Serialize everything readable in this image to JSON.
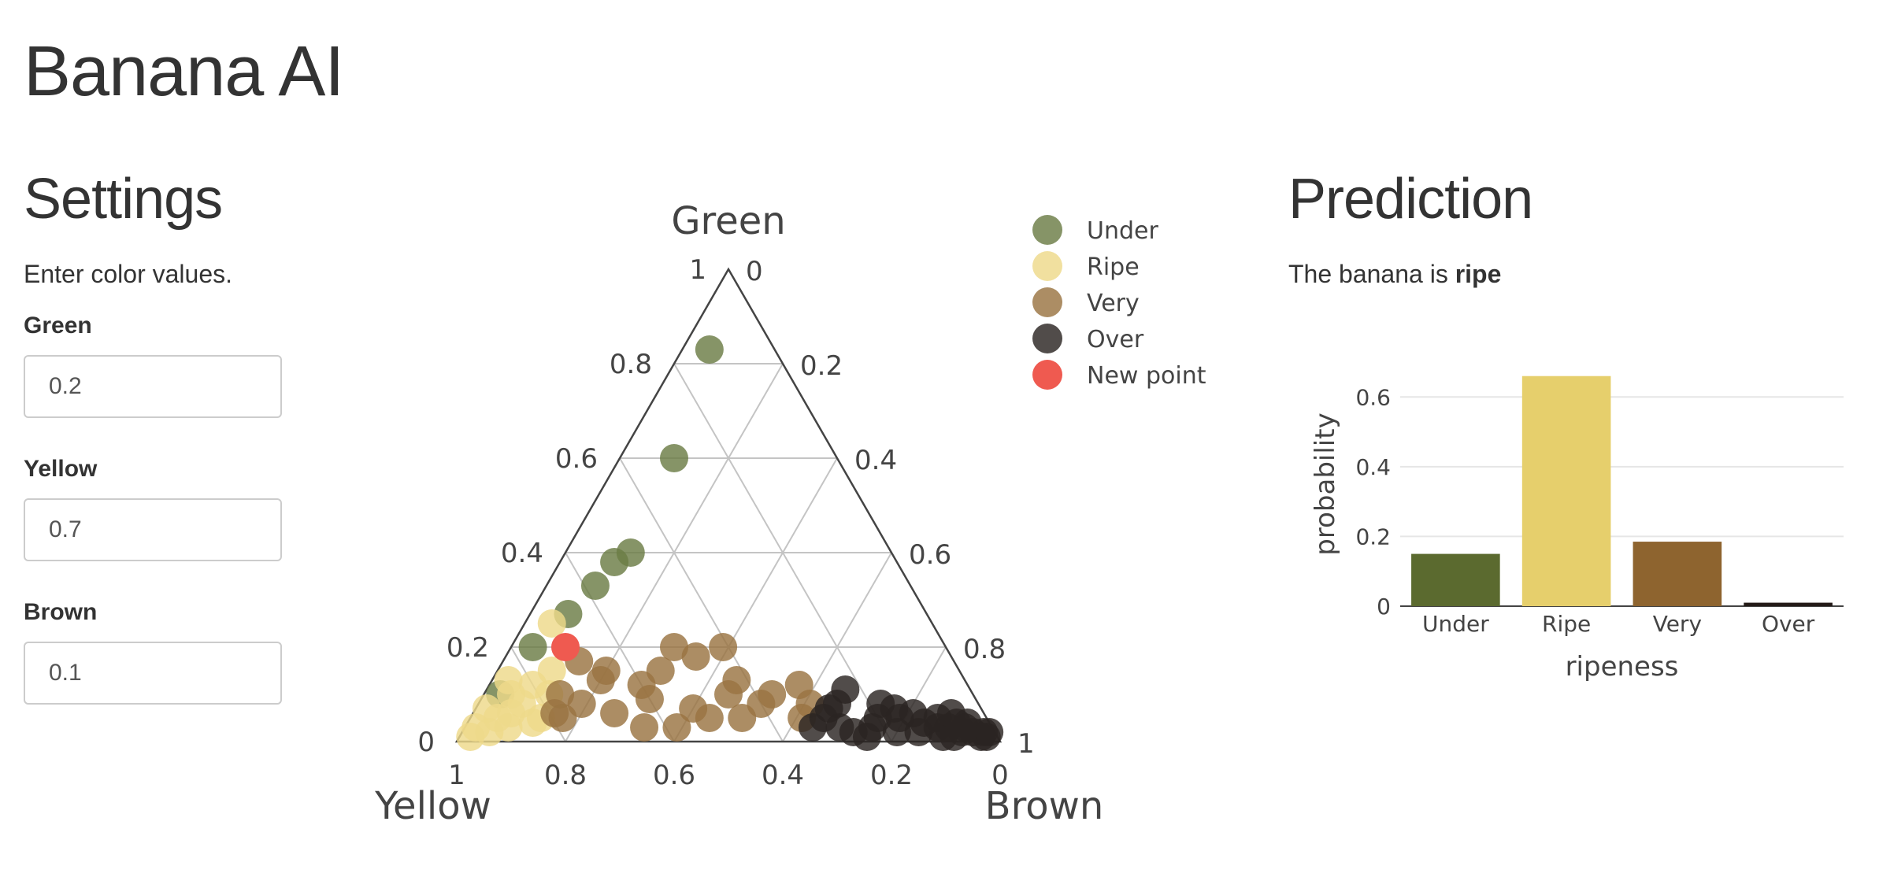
{
  "app": {
    "title": "Banana AI"
  },
  "settings": {
    "title": "Settings",
    "help": "Enter color values.",
    "fields": [
      {
        "label": "Green",
        "value": "0.2"
      },
      {
        "label": "Yellow",
        "value": "0.7"
      },
      {
        "label": "Brown",
        "value": "0.1"
      }
    ]
  },
  "prediction": {
    "title": "Prediction",
    "text_prefix": "The banana is ",
    "text_value": "ripe"
  },
  "chart_data": [
    {
      "type": "scatter",
      "subtype": "ternary",
      "axes": {
        "a": "Green",
        "b": "Yellow",
        "c": "Brown"
      },
      "tick_labels": [
        "0",
        "0.2",
        "0.4",
        "0.6",
        "0.8",
        "1"
      ],
      "grid": true,
      "legend_position": "top-right",
      "series": [
        {
          "name": "Under",
          "color": "#6b7d45",
          "points": [
            [
              0.83,
              0.12,
              0.05
            ],
            [
              0.6,
              0.3,
              0.1
            ],
            [
              0.4,
              0.48,
              0.12
            ],
            [
              0.38,
              0.52,
              0.1
            ],
            [
              0.33,
              0.58,
              0.09
            ],
            [
              0.27,
              0.66,
              0.07
            ],
            [
              0.2,
              0.76,
              0.04
            ],
            [
              0.1,
              0.87,
              0.03
            ]
          ]
        },
        {
          "name": "Ripe",
          "color": "#eed98a",
          "points": [
            [
              0.25,
              0.7,
              0.05
            ],
            [
              0.12,
              0.8,
              0.08
            ],
            [
              0.08,
              0.84,
              0.08
            ],
            [
              0.05,
              0.9,
              0.05
            ],
            [
              0.03,
              0.95,
              0.02
            ],
            [
              0.1,
              0.85,
              0.05
            ],
            [
              0.06,
              0.87,
              0.07
            ],
            [
              0.02,
              0.93,
              0.05
            ],
            [
              0.15,
              0.75,
              0.1
            ],
            [
              0.04,
              0.84,
              0.12
            ],
            [
              0.1,
              0.78,
              0.12
            ],
            [
              0.03,
              0.89,
              0.08
            ],
            [
              0.07,
              0.91,
              0.02
            ],
            [
              0.01,
              0.97,
              0.02
            ],
            [
              0.13,
              0.84,
              0.03
            ],
            [
              0.05,
              0.82,
              0.13
            ]
          ]
        },
        {
          "name": "Very",
          "color": "#9a7442",
          "points": [
            [
              0.17,
              0.69,
              0.14
            ],
            [
              0.13,
              0.67,
              0.2
            ],
            [
              0.12,
              0.6,
              0.28
            ],
            [
              0.15,
              0.55,
              0.3
            ],
            [
              0.2,
              0.5,
              0.3
            ],
            [
              0.18,
              0.47,
              0.35
            ],
            [
              0.2,
              0.41,
              0.39
            ],
            [
              0.13,
              0.42,
              0.45
            ],
            [
              0.1,
              0.45,
              0.45
            ],
            [
              0.07,
              0.53,
              0.4
            ],
            [
              0.05,
              0.45,
              0.5
            ],
            [
              0.1,
              0.37,
              0.53
            ],
            [
              0.08,
              0.4,
              0.52
            ],
            [
              0.15,
              0.65,
              0.2
            ],
            [
              0.08,
              0.73,
              0.19
            ],
            [
              0.05,
              0.78,
              0.17
            ],
            [
              0.1,
              0.76,
              0.14
            ],
            [
              0.06,
              0.68,
              0.26
            ],
            [
              0.03,
              0.64,
              0.33
            ],
            [
              0.03,
              0.58,
              0.39
            ],
            [
              0.05,
              0.51,
              0.44
            ],
            [
              0.12,
              0.31,
              0.57
            ],
            [
              0.08,
              0.31,
              0.61
            ],
            [
              0.05,
              0.34,
              0.61
            ],
            [
              0.06,
              0.79,
              0.15
            ],
            [
              0.09,
              0.6,
              0.31
            ]
          ]
        },
        {
          "name": "Over",
          "color": "#2b2422",
          "points": [
            [
              0.11,
              0.23,
              0.66
            ],
            [
              0.08,
              0.26,
              0.66
            ],
            [
              0.07,
              0.28,
              0.65
            ],
            [
              0.05,
              0.3,
              0.65
            ],
            [
              0.03,
              0.33,
              0.64
            ],
            [
              0.08,
              0.18,
              0.74
            ],
            [
              0.07,
              0.16,
              0.77
            ],
            [
              0.05,
              0.2,
              0.75
            ],
            [
              0.06,
              0.13,
              0.81
            ],
            [
              0.05,
              0.09,
              0.86
            ],
            [
              0.04,
              0.06,
              0.9
            ],
            [
              0.03,
              0.05,
              0.92
            ],
            [
              0.02,
              0.04,
              0.94
            ],
            [
              0.02,
              0.02,
              0.96
            ],
            [
              0.01,
              0.03,
              0.96
            ],
            [
              0.04,
              0.12,
              0.84
            ],
            [
              0.03,
              0.1,
              0.87
            ],
            [
              0.02,
              0.14,
              0.84
            ],
            [
              0.01,
              0.1,
              0.89
            ],
            [
              0.03,
              0.22,
              0.75
            ],
            [
              0.02,
              0.26,
              0.72
            ],
            [
              0.04,
              0.04,
              0.92
            ],
            [
              0.03,
              0.08,
              0.89
            ],
            [
              0.02,
              0.06,
              0.92
            ],
            [
              0.01,
              0.08,
              0.91
            ],
            [
              0.05,
              0.16,
              0.79
            ],
            [
              0.02,
              0.18,
              0.8
            ],
            [
              0.03,
              0.28,
              0.69
            ],
            [
              0.01,
              0.24,
              0.75
            ],
            [
              0.06,
              0.06,
              0.88
            ],
            [
              0.01,
              0.02,
              0.97
            ],
            [
              0.02,
              0.01,
              0.97
            ]
          ]
        },
        {
          "name": "New point",
          "color": "#ef5a50",
          "points": [
            [
              0.2,
              0.7,
              0.1
            ]
          ]
        }
      ]
    },
    {
      "type": "bar",
      "categories": [
        "Under",
        "Ripe",
        "Very",
        "Over"
      ],
      "values": [
        0.15,
        0.66,
        0.185,
        0.01
      ],
      "colors": [
        "#5b6a2f",
        "#e6cf6c",
        "#8e642f",
        "#231a17"
      ],
      "xlabel": "ripeness",
      "ylabel": "probability",
      "ylim": [
        0,
        0.7
      ],
      "yticks": [
        {
          "value": 0,
          "label": "0"
        },
        {
          "value": 0.2,
          "label": "0.2"
        },
        {
          "value": 0.4,
          "label": "0.4"
        },
        {
          "value": 0.6,
          "label": "0.6"
        }
      ],
      "grid": true
    }
  ]
}
